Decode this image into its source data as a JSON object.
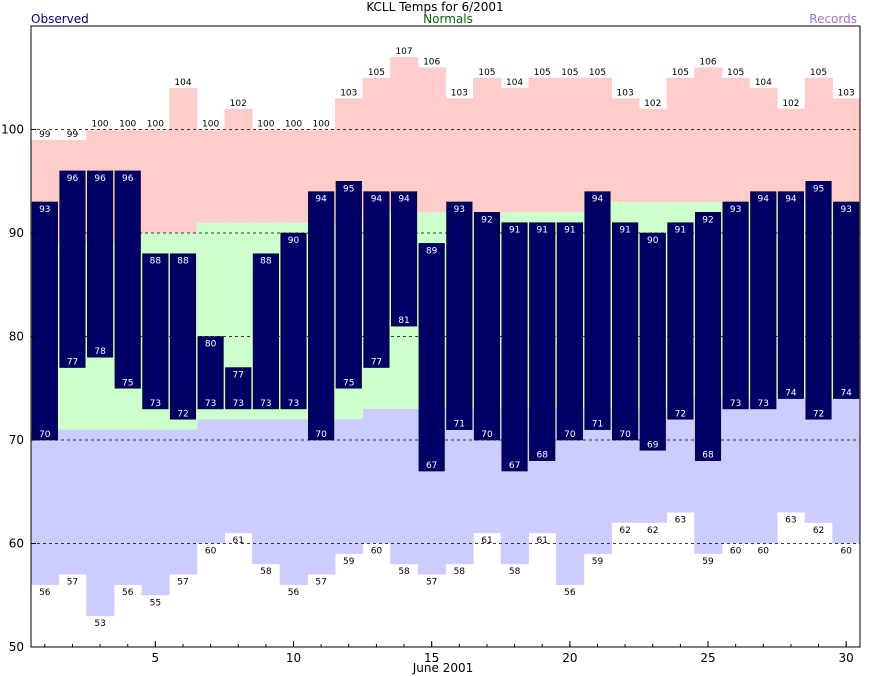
{
  "chart_data": {
    "type": "bar",
    "title": "KCLL Temps for 6/2001",
    "xlabel": "June 2001",
    "ylabel": "",
    "ylim": [
      50,
      110
    ],
    "xlim": [
      0.5,
      30.5
    ],
    "yticks": [
      50,
      60,
      70,
      80,
      90,
      100
    ],
    "xticks": [
      5,
      10,
      15,
      20,
      25,
      30
    ],
    "grid": "dashed horizontal lines at 60, 70, 80, 90, 100",
    "legend": {
      "observed": "Observed",
      "normals": "Normals",
      "records": "Records"
    },
    "colors": {
      "observed": "#000066",
      "observed_label": "#000080",
      "normals_band": "#ccffcc",
      "normals_label": "#006600",
      "records_high_band": "#ffcccc",
      "records_low_band": "#ccccff",
      "records_label": "#a070d0"
    },
    "days": [
      1,
      2,
      3,
      4,
      5,
      6,
      7,
      8,
      9,
      10,
      11,
      12,
      13,
      14,
      15,
      16,
      17,
      18,
      19,
      20,
      21,
      22,
      23,
      24,
      25,
      26,
      27,
      28,
      29,
      30
    ],
    "observed_high": [
      93,
      96,
      96,
      96,
      88,
      88,
      80,
      77,
      88,
      90,
      94,
      95,
      94,
      94,
      89,
      93,
      92,
      91,
      91,
      91,
      94,
      91,
      90,
      91,
      92,
      93,
      94,
      94,
      95,
      93
    ],
    "observed_low": [
      70,
      77,
      78,
      75,
      73,
      72,
      73,
      73,
      73,
      73,
      70,
      75,
      77,
      81,
      67,
      71,
      70,
      67,
      68,
      70,
      71,
      70,
      69,
      72,
      68,
      73,
      73,
      74,
      72,
      74
    ],
    "normal_high": [
      89,
      89,
      89,
      89,
      90,
      90,
      91,
      91,
      91,
      91,
      91,
      91,
      92,
      92,
      92,
      92,
      92,
      92,
      92,
      92,
      93,
      93,
      93,
      93,
      93,
      93,
      93,
      93,
      93,
      93
    ],
    "normal_low": [
      71,
      71,
      71,
      71,
      71,
      71,
      72,
      72,
      72,
      72,
      72,
      72,
      73,
      73,
      73,
      73,
      73,
      73,
      73,
      73,
      73,
      73,
      73,
      74,
      74,
      74,
      74,
      74,
      74,
      74
    ],
    "record_high": [
      99,
      99,
      100,
      100,
      100,
      104,
      100,
      102,
      100,
      100,
      100,
      103,
      105,
      107,
      106,
      103,
      105,
      104,
      105,
      105,
      105,
      103,
      102,
      105,
      106,
      105,
      104,
      102,
      105,
      103
    ],
    "record_low": [
      56,
      57,
      53,
      56,
      55,
      57,
      60,
      61,
      58,
      56,
      57,
      59,
      60,
      58,
      57,
      58,
      61,
      58,
      61,
      56,
      59,
      62,
      62,
      63,
      59,
      60,
      60,
      63,
      62,
      60
    ]
  }
}
